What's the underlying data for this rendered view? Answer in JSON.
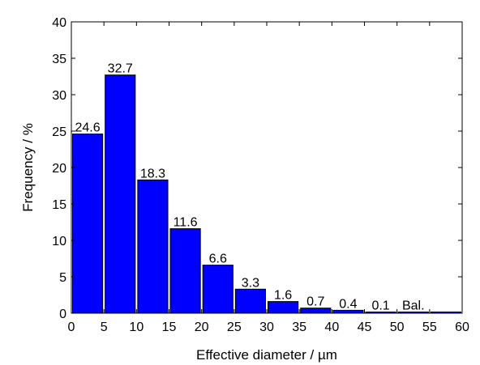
{
  "chart_data": {
    "type": "bar",
    "xlabel": "Effective diameter / µm",
    "ylabel": "Frequency / %",
    "xlim": [
      0,
      60
    ],
    "ylim": [
      0,
      40
    ],
    "xticks": [
      "0",
      "5",
      "10",
      "15",
      "20",
      "25",
      "30",
      "35",
      "40",
      "45",
      "50",
      "55",
      "60"
    ],
    "yticks": [
      "0",
      "5",
      "10",
      "15",
      "20",
      "25",
      "30",
      "35",
      "40"
    ],
    "bar_color": "#0000ff",
    "bins": [
      {
        "start": 0,
        "end": 5,
        "value": 24.6,
        "label": "24.6"
      },
      {
        "start": 5,
        "end": 10,
        "value": 32.7,
        "label": "32.7"
      },
      {
        "start": 10,
        "end": 15,
        "value": 18.3,
        "label": "18.3"
      },
      {
        "start": 15,
        "end": 20,
        "value": 11.6,
        "label": "11.6"
      },
      {
        "start": 20,
        "end": 25,
        "value": 6.6,
        "label": "6.6"
      },
      {
        "start": 25,
        "end": 30,
        "value": 3.3,
        "label": "3.3"
      },
      {
        "start": 30,
        "end": 35,
        "value": 1.6,
        "label": "1.6"
      },
      {
        "start": 35,
        "end": 40,
        "value": 0.7,
        "label": "0.7"
      },
      {
        "start": 40,
        "end": 45,
        "value": 0.4,
        "label": "0.4"
      },
      {
        "start": 45,
        "end": 50,
        "value": 0.1,
        "label": "0.1"
      },
      {
        "start": 50,
        "end": 55,
        "value": 0.05,
        "label": "Bal."
      },
      {
        "start": 55,
        "end": 60,
        "value": 0.05,
        "label": ""
      }
    ],
    "grid": false,
    "legend": false
  }
}
